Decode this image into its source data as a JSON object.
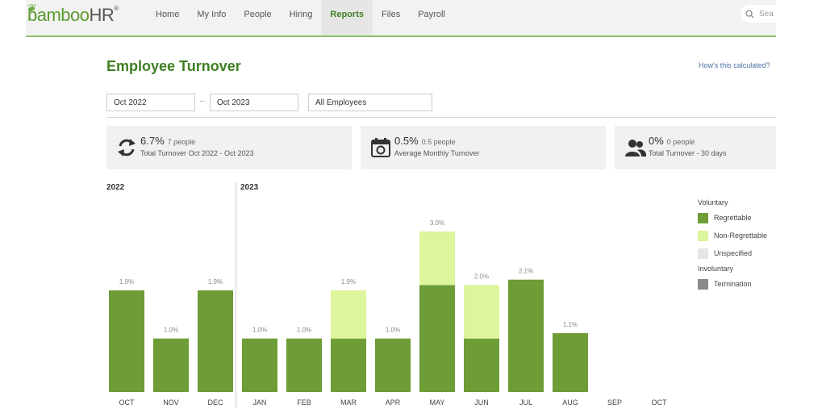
{
  "brand": {
    "name": "bamboo",
    "suffix": "HR",
    "reg": "®"
  },
  "nav": {
    "items": [
      {
        "label": "Home"
      },
      {
        "label": "My Info"
      },
      {
        "label": "People"
      },
      {
        "label": "Hiring"
      },
      {
        "label": "Reports"
      },
      {
        "label": "Files"
      },
      {
        "label": "Payroll"
      }
    ],
    "active": "Reports",
    "search_placeholder": "Sea"
  },
  "page": {
    "title": "Employee Turnover",
    "help_link": "How's this calculated?"
  },
  "filters": {
    "start": "Oct 2022",
    "separator": "–",
    "end": "Oct 2023",
    "group": "All Employees"
  },
  "summary": [
    {
      "value": "6.7%",
      "count": "7 people",
      "label": "Total Turnover Oct 2022 - Oct 2023",
      "icon": "refresh-arrows-icon"
    },
    {
      "value": "0.5%",
      "count": "0.5 people",
      "label": "Average Monthly Turnover",
      "icon": "calendar-icon"
    },
    {
      "value": "0%",
      "count": "0 people",
      "label": "Total Turnover - 30 days",
      "icon": "people-icon"
    }
  ],
  "legend": {
    "voluntary": "Voluntary",
    "involuntary": "Involuntary",
    "items": {
      "regrettable": "Regrettable",
      "non_regrettable": "Non-Regrettable",
      "unspecified": "Unspecified",
      "termination": "Termination"
    }
  },
  "colors": {
    "regrettable": "#6e9c36",
    "non_regrettable": "#ddf59c",
    "unspecified": "#e6e6e6",
    "termination": "#8a8a8a",
    "accent": "#3f7f23"
  },
  "chart_data": {
    "type": "bar",
    "stacked": true,
    "year_labels": [
      "2022",
      "2023"
    ],
    "categories": [
      "OCT",
      "NOV",
      "DEC",
      "JAN",
      "FEB",
      "MAR",
      "APR",
      "MAY",
      "JUN",
      "JUL",
      "AUG",
      "SEP",
      "OCT"
    ],
    "series": [
      {
        "name": "Regrettable",
        "values": [
          1.9,
          1.0,
          1.9,
          1.0,
          1.0,
          1.0,
          1.0,
          2.0,
          1.0,
          2.1,
          1.1,
          0,
          0
        ]
      },
      {
        "name": "Non-Regrettable",
        "values": [
          0,
          0,
          0,
          0,
          0,
          0.9,
          0,
          1.0,
          1.0,
          0,
          0,
          0,
          0
        ]
      }
    ],
    "totals": [
      "1.9%",
      "1.0%",
      "1.9%",
      "1.0%",
      "1.0%",
      "1.9%",
      "1.0%",
      "3.0%",
      "2.0%",
      "2.1%",
      "1.1%",
      "",
      ""
    ],
    "ylim": [
      0,
      3.0
    ]
  }
}
